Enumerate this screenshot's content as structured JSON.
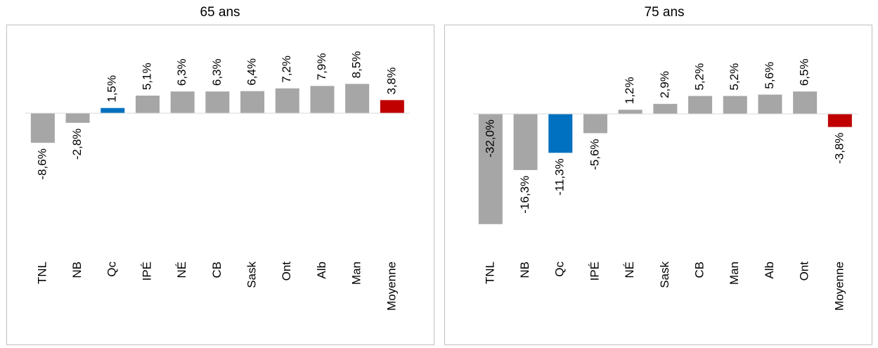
{
  "chart_data": [
    {
      "type": "bar",
      "title": "65 ans",
      "categories": [
        "TNL",
        "NB",
        "Qc",
        "IPÉ",
        "NÉ",
        "CB",
        "Sask",
        "Ont",
        "Alb",
        "Man",
        "Moyenne"
      ],
      "values": [
        -8.6,
        -2.8,
        1.5,
        5.1,
        6.3,
        6.3,
        6.4,
        7.2,
        7.9,
        8.5,
        3.8
      ],
      "value_labels": [
        "-8,6%",
        "-2,8%",
        "1,5%",
        "5,1%",
        "6,3%",
        "6,3%",
        "6,4%",
        "7,2%",
        "7,9%",
        "8,5%",
        "3,8%"
      ],
      "colors": [
        "#a6a6a6",
        "#a6a6a6",
        "#0070c0",
        "#a6a6a6",
        "#a6a6a6",
        "#a6a6a6",
        "#a6a6a6",
        "#a6a6a6",
        "#a6a6a6",
        "#a6a6a6",
        "#c00000"
      ]
    },
    {
      "type": "bar",
      "title": "75 ans",
      "categories": [
        "TNL",
        "NB",
        "Qc",
        "IPÉ",
        "NÉ",
        "Sask",
        "CB",
        "Man",
        "Alb",
        "Ont",
        "Moyenne"
      ],
      "values": [
        -32.0,
        -16.3,
        -11.3,
        -5.6,
        1.2,
        2.9,
        5.2,
        5.2,
        5.6,
        6.5,
        -3.8
      ],
      "value_labels": [
        "-32,0%",
        "-16,3%",
        "-11,3%",
        "-5,6%",
        "1,2%",
        "2,9%",
        "5,2%",
        "5,2%",
        "5,6%",
        "6,5%",
        "-3,8%"
      ],
      "colors": [
        "#a6a6a6",
        "#a6a6a6",
        "#0070c0",
        "#a6a6a6",
        "#a6a6a6",
        "#a6a6a6",
        "#a6a6a6",
        "#a6a6a6",
        "#a6a6a6",
        "#a6a6a6",
        "#c00000"
      ]
    }
  ]
}
